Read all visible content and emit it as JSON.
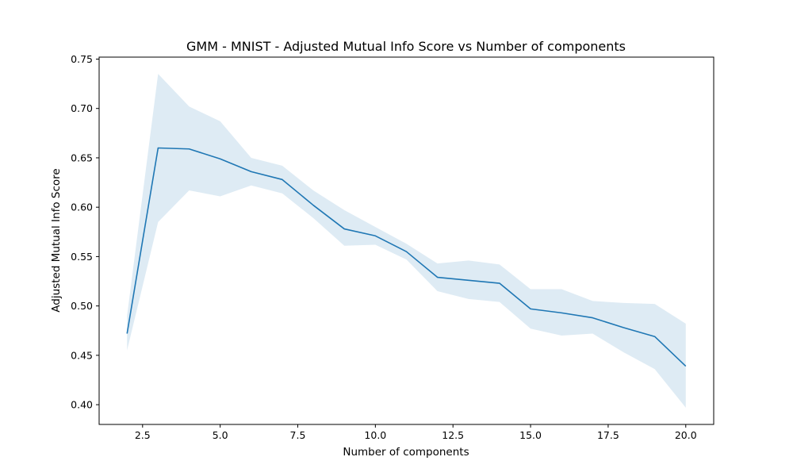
{
  "chart_data": {
    "type": "line",
    "title": "GMM - MNIST - Adjusted Mutual Info Score vs Number of components",
    "xlabel": "Number of components",
    "ylabel": "Adjusted Mutual Info Score",
    "xlim": [
      1.1,
      20.9
    ],
    "ylim": [
      0.38,
      0.752
    ],
    "grid": false,
    "x_ticks": [
      2.5,
      5.0,
      7.5,
      10.0,
      12.5,
      15.0,
      17.5,
      20.0
    ],
    "x_tick_labels": [
      "2.5",
      "5.0",
      "7.5",
      "10.0",
      "12.5",
      "15.0",
      "17.5",
      "20.0"
    ],
    "y_ticks": [
      0.4,
      0.45,
      0.5,
      0.55,
      0.6,
      0.65,
      0.7,
      0.75
    ],
    "y_tick_labels": [
      "0.40",
      "0.45",
      "0.50",
      "0.55",
      "0.60",
      "0.65",
      "0.70",
      "0.75"
    ],
    "colors": {
      "line": "#1f77b4",
      "band": "#1f77b4"
    },
    "x": [
      2,
      3,
      4,
      5,
      6,
      7,
      8,
      9,
      10,
      11,
      12,
      13,
      14,
      15,
      16,
      17,
      18,
      19,
      20
    ],
    "series": [
      {
        "values": [
          0.472,
          0.66,
          0.659,
          0.649,
          0.636,
          0.628,
          0.602,
          0.578,
          0.571,
          0.555,
          0.529,
          0.526,
          0.523,
          0.497,
          0.493,
          0.488,
          0.478,
          0.469,
          0.439
        ],
        "band_upper": [
          0.49,
          0.735,
          0.702,
          0.687,
          0.65,
          0.642,
          0.617,
          0.597,
          0.58,
          0.563,
          0.543,
          0.546,
          0.542,
          0.517,
          0.517,
          0.505,
          0.503,
          0.502,
          0.482
        ],
        "band_lower": [
          0.455,
          0.585,
          0.617,
          0.611,
          0.622,
          0.614,
          0.589,
          0.561,
          0.562,
          0.547,
          0.515,
          0.507,
          0.504,
          0.477,
          0.47,
          0.472,
          0.453,
          0.436,
          0.397
        ]
      }
    ]
  }
}
